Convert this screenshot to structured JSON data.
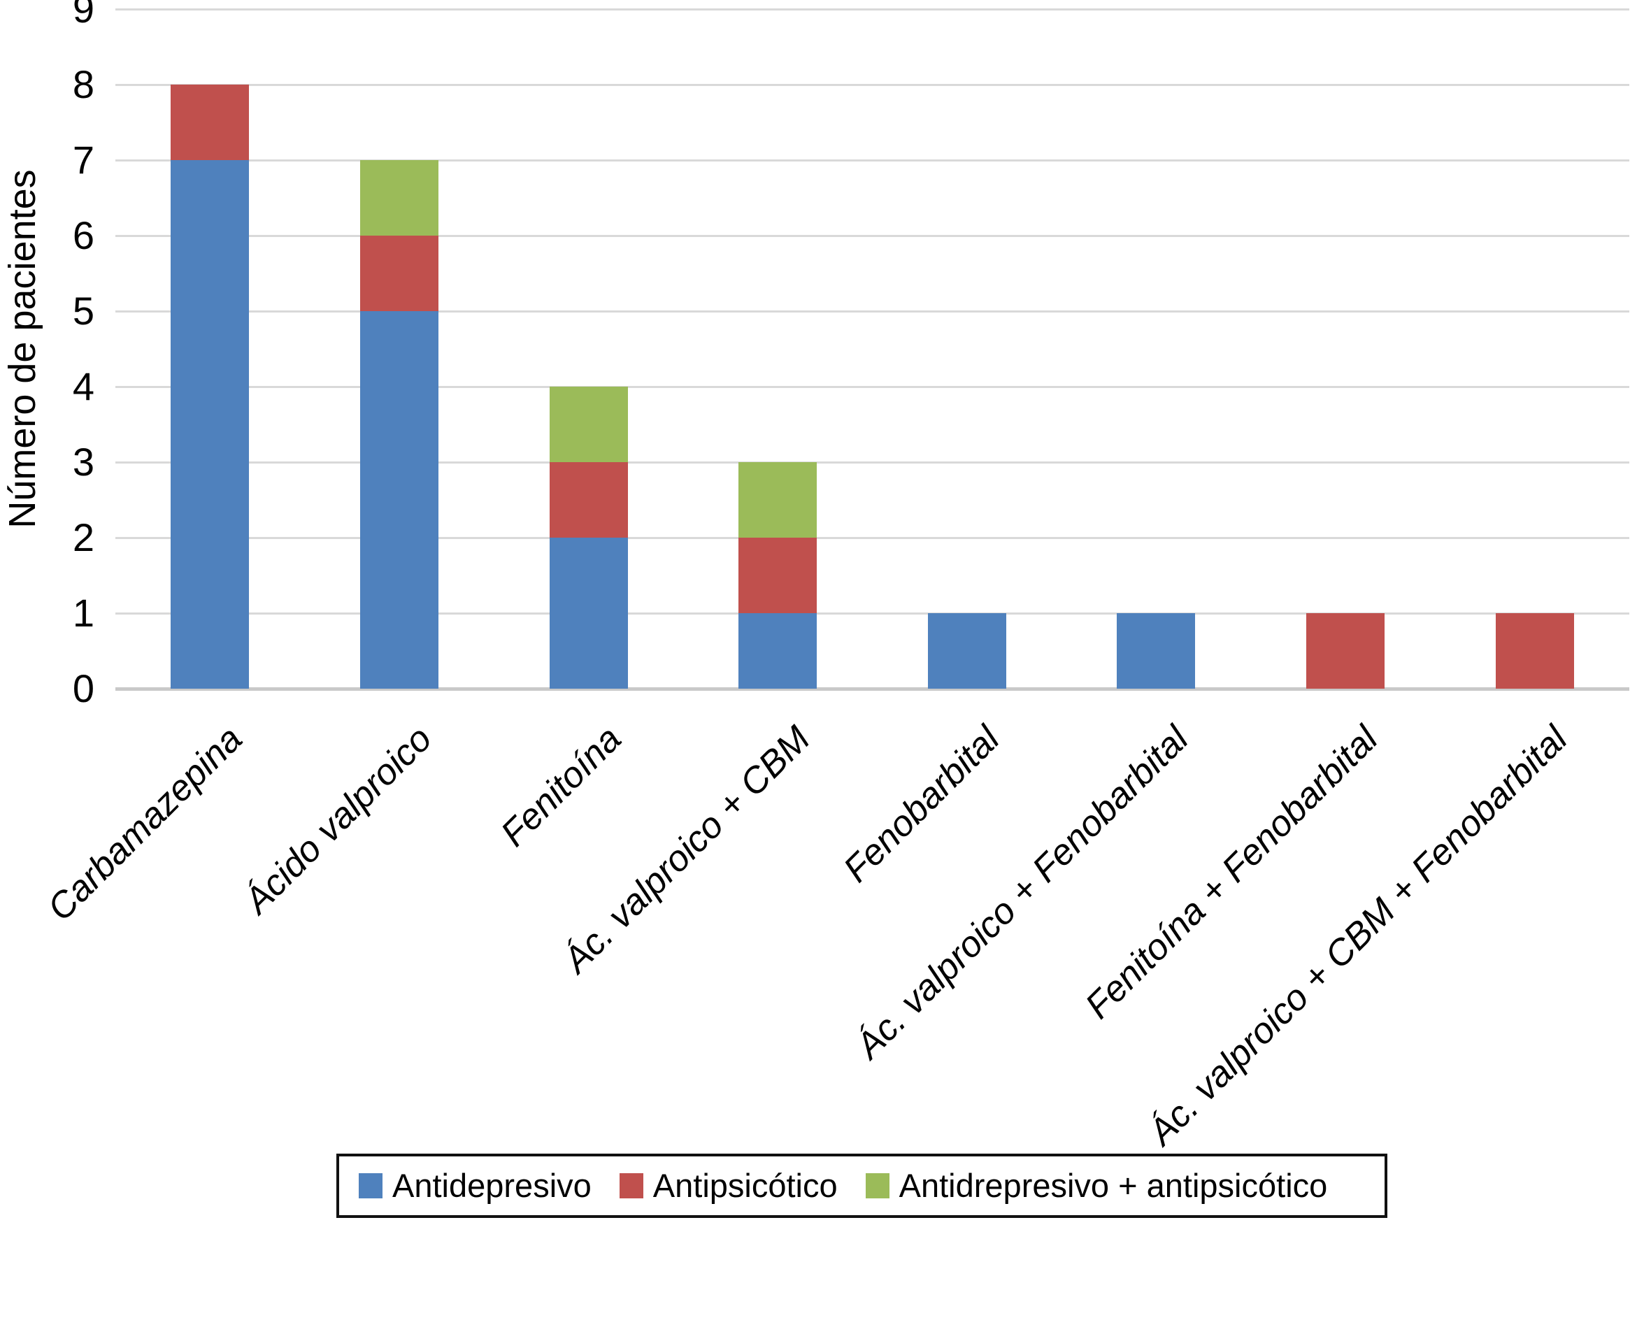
{
  "figure": {
    "background": "#ffffff",
    "ylabel": "Número de pacientes"
  },
  "chart_data": {
    "type": "bar",
    "stacked": true,
    "title": "",
    "xlabel": "",
    "ylabel": "Número de pacientes",
    "categories": [
      "Carbamazepina",
      "Ácido valproico",
      "Fenitoína",
      "Ác. valproico + CBM",
      "Fenobarbital",
      "Ác. valproico + Fenobarbital",
      "Fenitoína + Fenobarbital",
      "Ác. valproico + CBM + Fenobarbital"
    ],
    "series": [
      {
        "name": "Antidepresivo",
        "color": "#4f81bd",
        "values": [
          7,
          5,
          2,
          1,
          1,
          1,
          0,
          0
        ]
      },
      {
        "name": "Antipsicótico",
        "color": "#c0504d",
        "values": [
          1,
          1,
          1,
          1,
          0,
          0,
          1,
          1
        ]
      },
      {
        "name": "Antidrepresivo + antipsicótico",
        "color": "#9bbb59",
        "values": [
          0,
          1,
          1,
          1,
          0,
          0,
          0,
          0
        ]
      }
    ],
    "totals": [
      8,
      7,
      4,
      3,
      1,
      1,
      1,
      1
    ],
    "ylim": [
      0,
      9
    ],
    "ytick_step": 1,
    "yticks": [
      0,
      1,
      2,
      3,
      4,
      5,
      6,
      7,
      8,
      9
    ],
    "grid": true,
    "gridline_color": "#d9d9d9",
    "axis_line_color": "#c9c9c9",
    "legend_position": "bottom",
    "legend_border_color": "#111111"
  }
}
